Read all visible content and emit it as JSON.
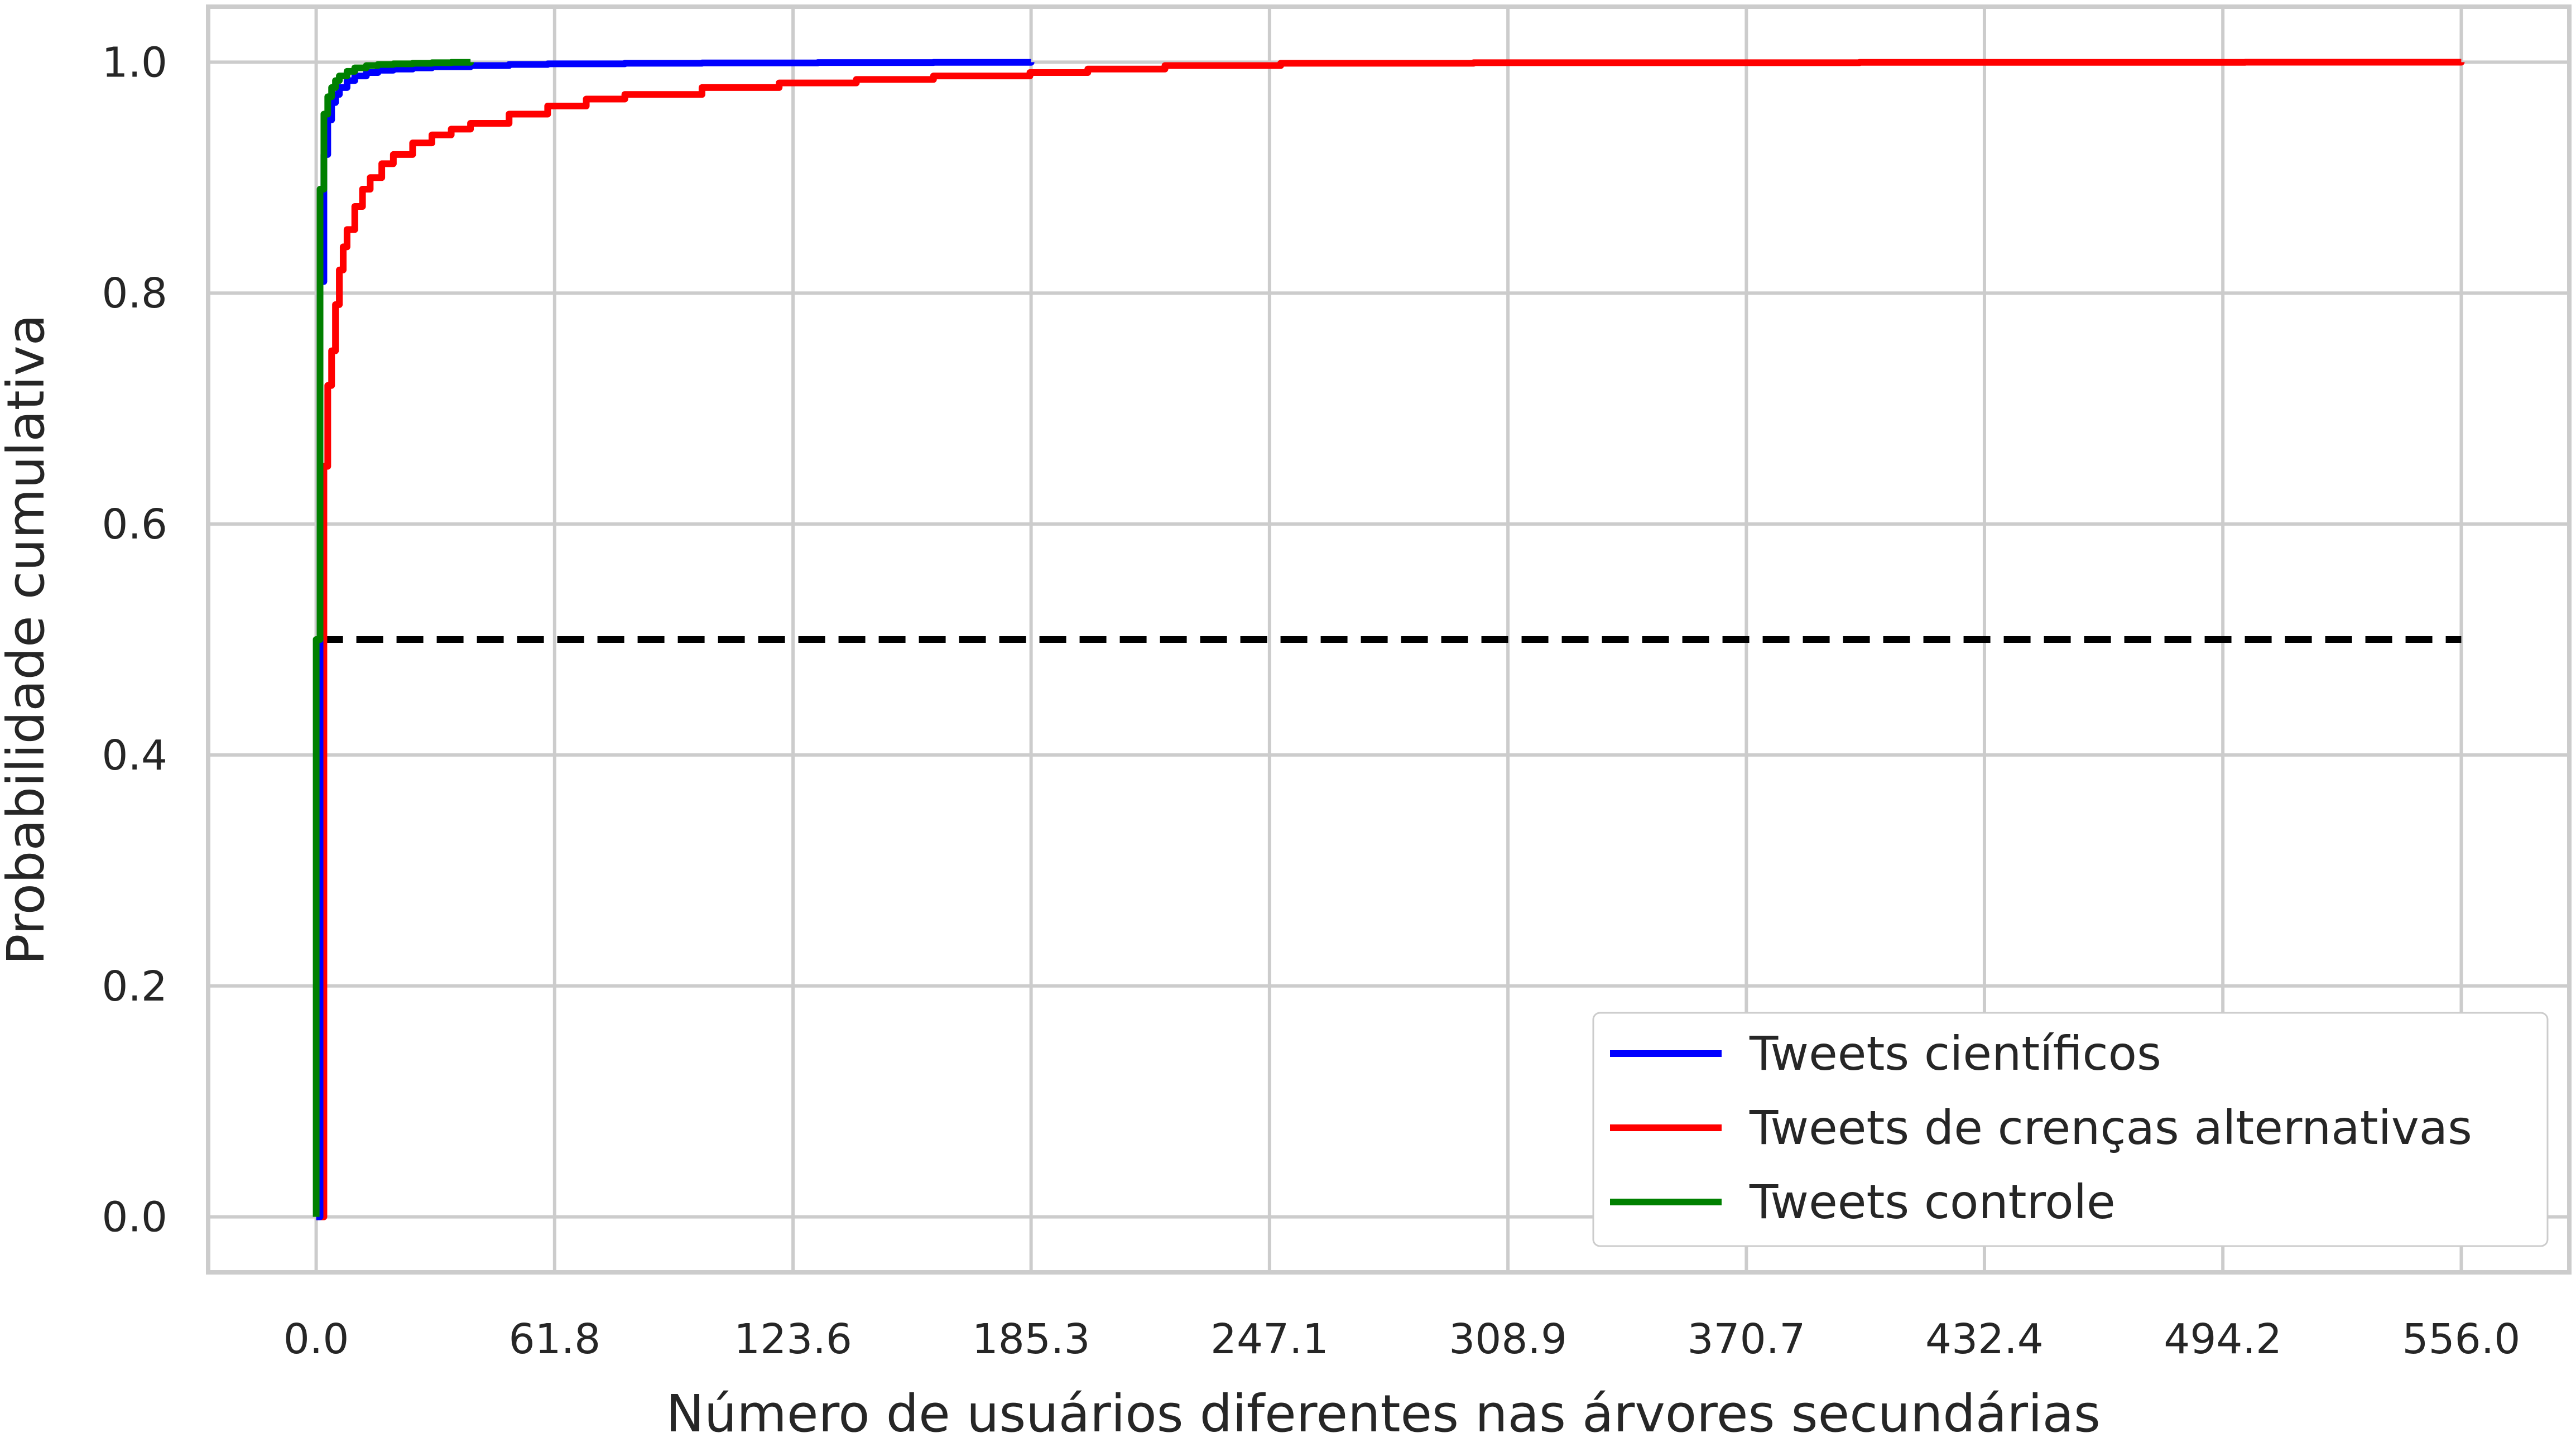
{
  "chart_data": {
    "type": "line",
    "title": "",
    "xlabel": "Número de usuários diferentes nas árvores secundárias",
    "ylabel": "Probabilidade cumulativa",
    "xlim": [
      -28,
      584
    ],
    "ylim": [
      -0.048,
      1.048
    ],
    "x_ticks": [
      "0.0",
      "61.8",
      "123.6",
      "185.3",
      "247.1",
      "308.9",
      "370.7",
      "432.4",
      "494.2",
      "556.0"
    ],
    "x_tick_values": [
      0.0,
      61.8,
      123.6,
      185.3,
      247.1,
      308.9,
      370.7,
      432.4,
      494.2,
      556.0
    ],
    "y_ticks": [
      "0.0",
      "0.2",
      "0.4",
      "0.6",
      "0.8",
      "1.0"
    ],
    "y_tick_values": [
      0.0,
      0.2,
      0.4,
      0.6,
      0.8,
      1.0
    ],
    "grid": true,
    "legend_position": "bottom-right",
    "series": [
      {
        "name": "Tweets científicos",
        "color": "#0000ff",
        "x": [
          0,
          1,
          1,
          2,
          2,
          3,
          4,
          5,
          6,
          8,
          10,
          13,
          16,
          20,
          25,
          30,
          40,
          50,
          60,
          80,
          100,
          130,
          160,
          185.3
        ],
        "y": [
          0,
          0.55,
          0.81,
          0.88,
          0.92,
          0.95,
          0.965,
          0.972,
          0.978,
          0.984,
          0.988,
          0.991,
          0.993,
          0.994,
          0.995,
          0.996,
          0.997,
          0.998,
          0.9985,
          0.999,
          0.9993,
          0.9996,
          0.9998,
          1.0
        ]
      },
      {
        "name": "Tweets de crenças alternativas",
        "color": "#ff0000",
        "x": [
          0,
          2,
          2,
          3,
          4,
          5,
          6,
          7,
          8,
          10,
          12,
          14,
          17,
          20,
          25,
          30,
          35,
          40,
          50,
          60,
          70,
          80,
          100,
          120,
          140,
          160,
          185,
          200,
          220,
          250,
          300,
          400,
          500,
          556
        ],
        "y": [
          0,
          0.52,
          0.65,
          0.72,
          0.75,
          0.79,
          0.82,
          0.84,
          0.855,
          0.875,
          0.89,
          0.9,
          0.912,
          0.92,
          0.93,
          0.937,
          0.942,
          0.947,
          0.955,
          0.962,
          0.968,
          0.972,
          0.978,
          0.982,
          0.985,
          0.988,
          0.991,
          0.994,
          0.997,
          0.999,
          0.9995,
          0.9998,
          0.9999,
          1.0
        ]
      },
      {
        "name": "Tweets controle",
        "color": "#008000",
        "x": [
          0,
          0,
          1,
          1,
          2,
          2,
          3,
          4,
          5,
          6,
          8,
          10,
          13,
          16,
          20,
          25,
          30,
          35,
          40
        ],
        "y": [
          0,
          0.5,
          0.83,
          0.89,
          0.93,
          0.955,
          0.97,
          0.978,
          0.984,
          0.988,
          0.992,
          0.995,
          0.997,
          0.998,
          0.9985,
          0.999,
          0.9995,
          0.9998,
          1.0
        ]
      },
      {
        "name": "",
        "color": "#000000",
        "style": "dashed",
        "x": [
          0,
          556
        ],
        "y": [
          0.5,
          0.5
        ]
      }
    ]
  }
}
